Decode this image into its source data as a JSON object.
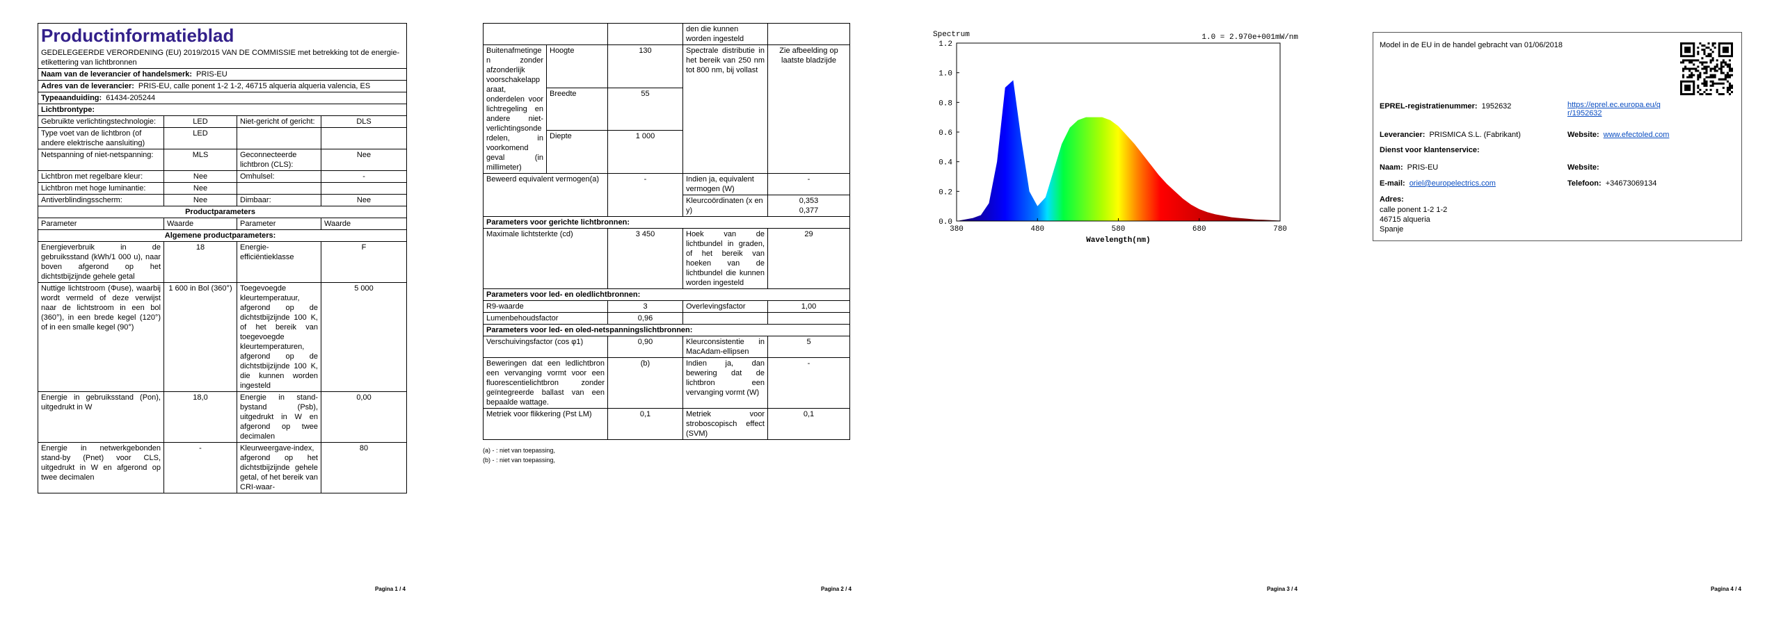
{
  "page1": {
    "title": "Productinformatieblad",
    "subtitle": "GEDELEGEERDE VERORDENING (EU) 2019/2015 VAN DE COMMISSIE met betrekking tot de energie-etikettering van lichtbronnen",
    "supplier": [
      {
        "label": "Naam van de leverancier of handelsmerk:",
        "value": "PRIS-EU"
      },
      {
        "label": "Adres van de leverancier:",
        "value": "PRIS-EU, calle ponent 1-2 1-2, 46715 alqueria alqueria valencia, ES"
      },
      {
        "label": "Typeaanduiding:",
        "value": "61434-205244"
      }
    ],
    "light_source_type": "Lichtbrontype:",
    "characteristics": [
      [
        "Gebruikte verlichtingstechnologie:",
        "LED",
        "Niet-gericht of gericht:",
        "DLS"
      ],
      [
        "Type voet van de lichtbron (of andere elektrische aansluiting)",
        "LED",
        null,
        null
      ],
      [
        "Netspanning of niet-netspanning:",
        "MLS",
        "Geconnecteerde lichtbron (CLS):",
        "Nee"
      ],
      [
        "Lichtbron met regelbare kleur:",
        "Nee",
        "Omhulsel:",
        "-"
      ],
      [
        "Lichtbron met hoge luminantie:",
        "Nee",
        null,
        null
      ],
      [
        "Antiverblindingsscherm:",
        "Nee",
        "Dimbaar:",
        "Nee"
      ]
    ],
    "product_parameters": "Productparameters",
    "column_headers": [
      "Parameter",
      "Waarde",
      "Parameter",
      "Waarde"
    ],
    "general_parameters": "Algemene productparameters:",
    "parameters": [
      [
        "Energieverbruik in de gebruiksstand (kWh/1 000 u), naar boven afgerond op het dichtstbijzijnde gehele getal",
        "18",
        "Energie-efficiëntieklasse",
        "F"
      ],
      [
        "Nuttige lichtstroom (Φuse), waarbij wordt vermeld of deze verwijst naar de lichtstroom in een bol (360°), in een brede kegel (120°) of in een smalle kegel (90°)",
        "1 600 in Bol (360°)",
        "Toegevoegde kleurtemperatuur, afgerond op de dichtstbijzijnde 100 K, of het bereik van toegevoegde kleurtemperaturen, afgerond op de dichtstbijzijnde 100 K, die kunnen worden ingesteld",
        "5 000"
      ],
      [
        "Energie in gebruiksstand (Pon), uitgedrukt in W",
        "18,0",
        "Energie in stand-bystand (Psb), uitgedrukt in W en afgerond op twee decimalen",
        "0,00"
      ],
      [
        "Energie in netwerkgebonden stand-by (Pnet) voor CLS, uitgedrukt in W en afgerond op twee decimalen",
        "-",
        "Kleurweergave-index, afgerond op het dichtstbijzijnde gehele getal, of het bereik van CRI-waar-",
        "80"
      ]
    ],
    "footer": "Pagina 1 / 4"
  },
  "page2": {
    "continued_text": "den die kunnen worden ingesteld",
    "dimensions": {
      "label": "Buitenafmetingen zonder afzonderlijk voorschakelapparaat, onderdelen voor lichtregeling en andere niet-verlichtingsonderdelen, in voorkomend geval (in millimeter)",
      "items": [
        {
          "name": "Hoogte",
          "value": "130"
        },
        {
          "name": "Breedte",
          "value": "55"
        },
        {
          "name": "Diepte",
          "value": "1 000"
        }
      ]
    },
    "spectral": {
      "label": "Spectrale distributie in het bereik van 250 nm tot 800 nm, bij vollast",
      "value": "Zie afbeelding op laatste bladzijde"
    },
    "equivalent": {
      "label": "Beweerd equivalent vermogen(a)",
      "value": "-",
      "param": "Indien ja, equivalent vermogen (W)",
      "param_value": "-"
    },
    "chromaticity": {
      "label": "Kleurcoördinaten (x en y)",
      "values": [
        "0,353",
        "0,377"
      ]
    },
    "rows": [
      {
        "section": "Parameters voor gerichte lichtbronnen:"
      },
      {
        "cells": [
          "Maximale lichtsterkte (cd)",
          "3 450",
          "Hoek van de lichtbundel in graden, of het bereik van hoeken van de lichtbundel die kunnen worden ingesteld",
          "29"
        ]
      },
      {
        "section": "Parameters voor led- en oledlichtbronnen:"
      },
      {
        "cells": [
          "R9-waarde",
          "3",
          "Overlevingsfactor",
          "1,00"
        ]
      },
      {
        "cells": [
          "Lumenbehoudsfactor",
          "0,96",
          null,
          null
        ]
      },
      {
        "section": "Parameters voor led- en oled-netspanningslichtbronnen:"
      },
      {
        "cells": [
          "Verschuivingsfactor (cos φ1)",
          "0,90",
          "Kleurconsistentie in MacAdam-ellipsen",
          "5"
        ]
      },
      {
        "cells": [
          "Beweringen dat een ledlichtbron een vervanging vormt voor een fluorescentielichtbron zonder geïntegreerde ballast van een bepaalde wattage.",
          "(b)",
          "Indien ja, dan bewering dat de lichtbron een vervanging vormt (W)",
          "-"
        ]
      },
      {
        "cells": [
          "Metriek voor flikkering (Pst LM)",
          "0,1",
          "Metriek voor stroboscopisch effect (SVM)",
          "0,1"
        ]
      }
    ],
    "footnotes": [
      "(a) - : niet van toepassing,",
      "(b) - : niet van toepassing,"
    ],
    "footer": "Pagina 2 / 4"
  },
  "page3": {
    "chart": {
      "type": "area",
      "title": "Spectrum",
      "annotation": "1.0 = 2.970e+001mW/nm",
      "x_label": "Wavelength(nm)",
      "x": [
        380,
        390,
        400,
        410,
        420,
        430,
        440,
        450,
        460,
        470,
        480,
        490,
        500,
        510,
        520,
        530,
        540,
        550,
        560,
        570,
        580,
        590,
        600,
        610,
        620,
        630,
        640,
        650,
        660,
        670,
        680,
        690,
        700,
        710,
        720,
        730,
        740,
        750,
        760,
        770,
        780
      ],
      "values": [
        0,
        0.01,
        0.02,
        0.04,
        0.12,
        0.4,
        0.9,
        0.95,
        0.55,
        0.2,
        0.1,
        0.16,
        0.34,
        0.52,
        0.63,
        0.68,
        0.7,
        0.7,
        0.7,
        0.68,
        0.64,
        0.58,
        0.52,
        0.45,
        0.38,
        0.31,
        0.25,
        0.2,
        0.15,
        0.11,
        0.08,
        0.06,
        0.045,
        0.035,
        0.025,
        0.02,
        0.015,
        0.01,
        0.008,
        0.005,
        0.003
      ],
      "xlim": [
        380,
        780
      ],
      "ylim": [
        0,
        1.2
      ],
      "xticks": [
        380,
        480,
        580,
        680,
        780
      ],
      "yticks": [
        {
          "value": 0,
          "label": "0.0"
        },
        0.2,
        0.4,
        0.6,
        0.8,
        {
          "value": 1,
          "label": "1.0"
        },
        1.2
      ]
    },
    "footer": "Pagina 3 / 4"
  },
  "page4": {
    "model_text": "Model in de EU in de handel gebracht van 01/06/2018",
    "eprel": {
      "label": "EPREL-registratienummer:",
      "value": "1952632",
      "link": "https://eprel.ec.europa.eu/qr/1952632"
    },
    "supplier": {
      "label": "Leverancier:",
      "value": "PRISMICA S.L. (Fabrikant)"
    },
    "supplier_website": {
      "label": "Website:",
      "value": "www.efectoled.com"
    },
    "service_title": "Dienst voor klantenservice:",
    "name": {
      "label": "Naam:",
      "value": "PRIS-EU"
    },
    "service_website": {
      "label": "Website:"
    },
    "email": {
      "label": "E-mail:",
      "value": "oriel@europelectrics.com"
    },
    "phone": {
      "label": "Telefoon:",
      "value": "+34673069134"
    },
    "address": {
      "label": "Adres:",
      "lines": [
        "calle ponent 1-2 1-2",
        "46715 alqueria",
        "Spanje"
      ]
    },
    "footer": "Pagina 4 / 4"
  }
}
